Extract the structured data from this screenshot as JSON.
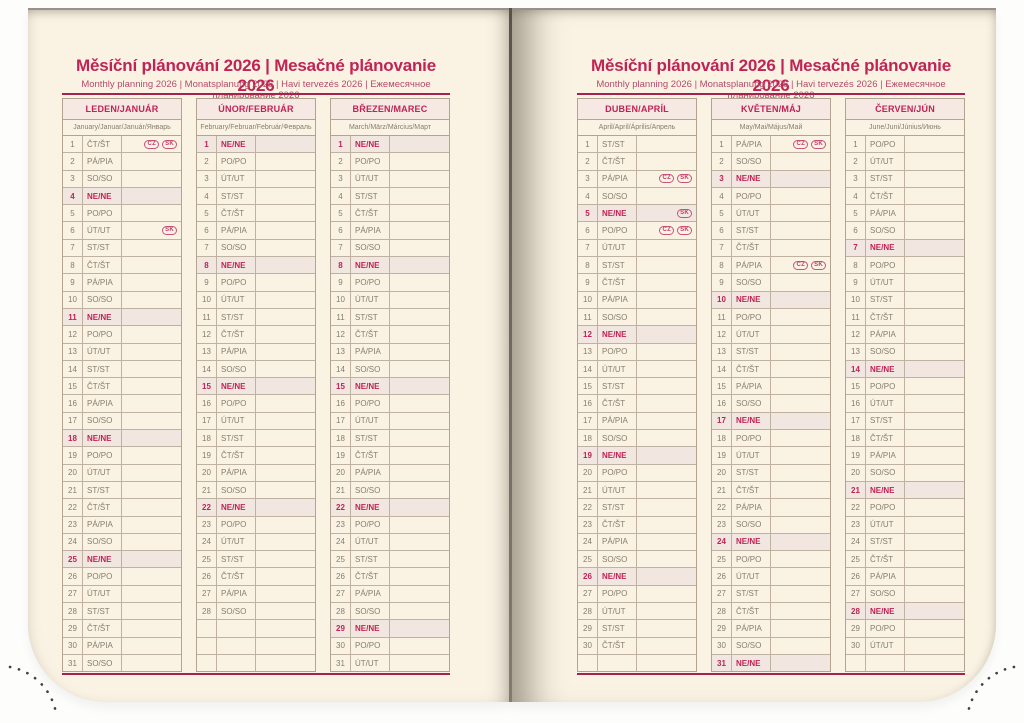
{
  "spread": {
    "title": "Měsíční plánování 2026 | Mesačné plánovanie 2026",
    "subtitle": "Monthly planning 2026 | Monatsplanung 2026 | Havi tervezés 2026 | Ежемесячное планирование 2026"
  },
  "sunday_label": "NE/NE",
  "colors": {
    "accent": "#c02355",
    "rule": "#a52150",
    "page": "#faf3e4",
    "header_bg": "#f6e8e2",
    "sunday_bg": "#f2e7e0",
    "border": "#b3a492",
    "day_text": "#877c6d",
    "badge": "#c4406c",
    "dots": "#44413c"
  },
  "months": [
    {
      "title": "LEDEN/JANUÁR",
      "subtitle": "January/Januar/Január/Январь",
      "days": [
        [
          "1",
          "ČT/ŠT",
          [
            "CZ",
            "SK"
          ]
        ],
        [
          "2",
          "PÁ/PIA"
        ],
        [
          "3",
          "SO/SO"
        ],
        [
          "4",
          "NE/NE"
        ],
        [
          "5",
          "PO/PO"
        ],
        [
          "6",
          "ÚT/UT",
          [
            "SK"
          ]
        ],
        [
          "7",
          "ST/ST"
        ],
        [
          "8",
          "ČT/ŠT"
        ],
        [
          "9",
          "PÁ/PIA"
        ],
        [
          "10",
          "SO/SO"
        ],
        [
          "11",
          "NE/NE"
        ],
        [
          "12",
          "PO/PO"
        ],
        [
          "13",
          "ÚT/UT"
        ],
        [
          "14",
          "ST/ST"
        ],
        [
          "15",
          "ČT/ŠT"
        ],
        [
          "16",
          "PÁ/PIA"
        ],
        [
          "17",
          "SO/SO"
        ],
        [
          "18",
          "NE/NE"
        ],
        [
          "19",
          "PO/PO"
        ],
        [
          "20",
          "ÚT/UT"
        ],
        [
          "21",
          "ST/ST"
        ],
        [
          "22",
          "ČT/ŠT"
        ],
        [
          "23",
          "PÁ/PIA"
        ],
        [
          "24",
          "SO/SO"
        ],
        [
          "25",
          "NE/NE"
        ],
        [
          "26",
          "PO/PO"
        ],
        [
          "27",
          "ÚT/UT"
        ],
        [
          "28",
          "ST/ST"
        ],
        [
          "29",
          "ČT/ŠT"
        ],
        [
          "30",
          "PÁ/PIA"
        ],
        [
          "31",
          "SO/SO"
        ]
      ]
    },
    {
      "title": "ÚNOR/FEBRUÁR",
      "subtitle": "February/Februar/Február/Февраль",
      "days": [
        [
          "1",
          "NE/NE"
        ],
        [
          "2",
          "PO/PO"
        ],
        [
          "3",
          "ÚT/UT"
        ],
        [
          "4",
          "ST/ST"
        ],
        [
          "5",
          "ČT/ŠT"
        ],
        [
          "6",
          "PÁ/PIA"
        ],
        [
          "7",
          "SO/SO"
        ],
        [
          "8",
          "NE/NE"
        ],
        [
          "9",
          "PO/PO"
        ],
        [
          "10",
          "ÚT/UT"
        ],
        [
          "11",
          "ST/ST"
        ],
        [
          "12",
          "ČT/ŠT"
        ],
        [
          "13",
          "PÁ/PIA"
        ],
        [
          "14",
          "SO/SO"
        ],
        [
          "15",
          "NE/NE"
        ],
        [
          "16",
          "PO/PO"
        ],
        [
          "17",
          "ÚT/UT"
        ],
        [
          "18",
          "ST/ST"
        ],
        [
          "19",
          "ČT/ŠT"
        ],
        [
          "20",
          "PÁ/PIA"
        ],
        [
          "21",
          "SO/SO"
        ],
        [
          "22",
          "NE/NE"
        ],
        [
          "23",
          "PO/PO"
        ],
        [
          "24",
          "ÚT/UT"
        ],
        [
          "25",
          "ST/ST"
        ],
        [
          "26",
          "ČT/ŠT"
        ],
        [
          "27",
          "PÁ/PIA"
        ],
        [
          "28",
          "SO/SO"
        ],
        [
          "",
          ""
        ],
        [
          "",
          ""
        ],
        [
          "",
          ""
        ]
      ]
    },
    {
      "title": "BŘEZEN/MAREC",
      "subtitle": "March/März/Március/Март",
      "days": [
        [
          "1",
          "NE/NE"
        ],
        [
          "2",
          "PO/PO"
        ],
        [
          "3",
          "ÚT/UT"
        ],
        [
          "4",
          "ST/ST"
        ],
        [
          "5",
          "ČT/ŠT"
        ],
        [
          "6",
          "PÁ/PIA"
        ],
        [
          "7",
          "SO/SO"
        ],
        [
          "8",
          "NE/NE"
        ],
        [
          "9",
          "PO/PO"
        ],
        [
          "10",
          "ÚT/UT"
        ],
        [
          "11",
          "ST/ST"
        ],
        [
          "12",
          "ČT/ŠT"
        ],
        [
          "13",
          "PÁ/PIA"
        ],
        [
          "14",
          "SO/SO"
        ],
        [
          "15",
          "NE/NE"
        ],
        [
          "16",
          "PO/PO"
        ],
        [
          "17",
          "ÚT/UT"
        ],
        [
          "18",
          "ST/ST"
        ],
        [
          "19",
          "ČT/ŠT"
        ],
        [
          "20",
          "PÁ/PIA"
        ],
        [
          "21",
          "SO/SO"
        ],
        [
          "22",
          "NE/NE"
        ],
        [
          "23",
          "PO/PO"
        ],
        [
          "24",
          "ÚT/UT"
        ],
        [
          "25",
          "ST/ST"
        ],
        [
          "26",
          "ČT/ŠT"
        ],
        [
          "27",
          "PÁ/PIA"
        ],
        [
          "28",
          "SO/SO"
        ],
        [
          "29",
          "NE/NE"
        ],
        [
          "30",
          "PO/PO"
        ],
        [
          "31",
          "ÚT/UT"
        ]
      ]
    },
    {
      "title": "DUBEN/APRÍL",
      "subtitle": "April/April/Április/Апрель",
      "days": [
        [
          "1",
          "ST/ST"
        ],
        [
          "2",
          "ČT/ŠT"
        ],
        [
          "3",
          "PÁ/PIA",
          [
            "CZ",
            "SK"
          ]
        ],
        [
          "4",
          "SO/SO"
        ],
        [
          "5",
          "NE/NE",
          [
            "SK"
          ]
        ],
        [
          "6",
          "PO/PO",
          [
            "CZ",
            "SK"
          ]
        ],
        [
          "7",
          "ÚT/UT"
        ],
        [
          "8",
          "ST/ST"
        ],
        [
          "9",
          "ČT/ŠT"
        ],
        [
          "10",
          "PÁ/PIA"
        ],
        [
          "11",
          "SO/SO"
        ],
        [
          "12",
          "NE/NE"
        ],
        [
          "13",
          "PO/PO"
        ],
        [
          "14",
          "ÚT/UT"
        ],
        [
          "15",
          "ST/ST"
        ],
        [
          "16",
          "ČT/ŠT"
        ],
        [
          "17",
          "PÁ/PIA"
        ],
        [
          "18",
          "SO/SO"
        ],
        [
          "19",
          "NE/NE"
        ],
        [
          "20",
          "PO/PO"
        ],
        [
          "21",
          "ÚT/UT"
        ],
        [
          "22",
          "ST/ST"
        ],
        [
          "23",
          "ČT/ŠT"
        ],
        [
          "24",
          "PÁ/PIA"
        ],
        [
          "25",
          "SO/SO"
        ],
        [
          "26",
          "NE/NE"
        ],
        [
          "27",
          "PO/PO"
        ],
        [
          "28",
          "ÚT/UT"
        ],
        [
          "29",
          "ST/ST"
        ],
        [
          "30",
          "ČT/ŠT"
        ],
        [
          "",
          ""
        ]
      ]
    },
    {
      "title": "KVĚTEN/MÁJ",
      "subtitle": "May/Mai/Május/Май",
      "days": [
        [
          "1",
          "PÁ/PIA",
          [
            "CZ",
            "SK"
          ]
        ],
        [
          "2",
          "SO/SO"
        ],
        [
          "3",
          "NE/NE"
        ],
        [
          "4",
          "PO/PO"
        ],
        [
          "5",
          "ÚT/UT"
        ],
        [
          "6",
          "ST/ST"
        ],
        [
          "7",
          "ČT/ŠT"
        ],
        [
          "8",
          "PÁ/PIA",
          [
            "CZ",
            "SK"
          ]
        ],
        [
          "9",
          "SO/SO"
        ],
        [
          "10",
          "NE/NE"
        ],
        [
          "11",
          "PO/PO"
        ],
        [
          "12",
          "ÚT/UT"
        ],
        [
          "13",
          "ST/ST"
        ],
        [
          "14",
          "ČT/ŠT"
        ],
        [
          "15",
          "PÁ/PIA"
        ],
        [
          "16",
          "SO/SO"
        ],
        [
          "17",
          "NE/NE"
        ],
        [
          "18",
          "PO/PO"
        ],
        [
          "19",
          "ÚT/UT"
        ],
        [
          "20",
          "ST/ST"
        ],
        [
          "21",
          "ČT/ŠT"
        ],
        [
          "22",
          "PÁ/PIA"
        ],
        [
          "23",
          "SO/SO"
        ],
        [
          "24",
          "NE/NE"
        ],
        [
          "25",
          "PO/PO"
        ],
        [
          "26",
          "ÚT/UT"
        ],
        [
          "27",
          "ST/ST"
        ],
        [
          "28",
          "ČT/ŠT"
        ],
        [
          "29",
          "PÁ/PIA"
        ],
        [
          "30",
          "SO/SO"
        ],
        [
          "31",
          "NE/NE"
        ]
      ]
    },
    {
      "title": "ČERVEN/JÚN",
      "subtitle": "June/Juni/Június/Июнь",
      "days": [
        [
          "1",
          "PO/PO"
        ],
        [
          "2",
          "ÚT/UT"
        ],
        [
          "3",
          "ST/ST"
        ],
        [
          "4",
          "ČT/ŠT"
        ],
        [
          "5",
          "PÁ/PIA"
        ],
        [
          "6",
          "SO/SO"
        ],
        [
          "7",
          "NE/NE"
        ],
        [
          "8",
          "PO/PO"
        ],
        [
          "9",
          "ÚT/UT"
        ],
        [
          "10",
          "ST/ST"
        ],
        [
          "11",
          "ČT/ŠT"
        ],
        [
          "12",
          "PÁ/PIA"
        ],
        [
          "13",
          "SO/SO"
        ],
        [
          "14",
          "NE/NE"
        ],
        [
          "15",
          "PO/PO"
        ],
        [
          "16",
          "ÚT/UT"
        ],
        [
          "17",
          "ST/ST"
        ],
        [
          "18",
          "ČT/ŠT"
        ],
        [
          "19",
          "PÁ/PIA"
        ],
        [
          "20",
          "SO/SO"
        ],
        [
          "21",
          "NE/NE"
        ],
        [
          "22",
          "PO/PO"
        ],
        [
          "23",
          "ÚT/UT"
        ],
        [
          "24",
          "ST/ST"
        ],
        [
          "25",
          "ČT/ŠT"
        ],
        [
          "26",
          "PÁ/PIA"
        ],
        [
          "27",
          "SO/SO"
        ],
        [
          "28",
          "NE/NE"
        ],
        [
          "29",
          "PO/PO"
        ],
        [
          "30",
          "ÚT/UT"
        ],
        [
          "",
          ""
        ]
      ]
    }
  ]
}
